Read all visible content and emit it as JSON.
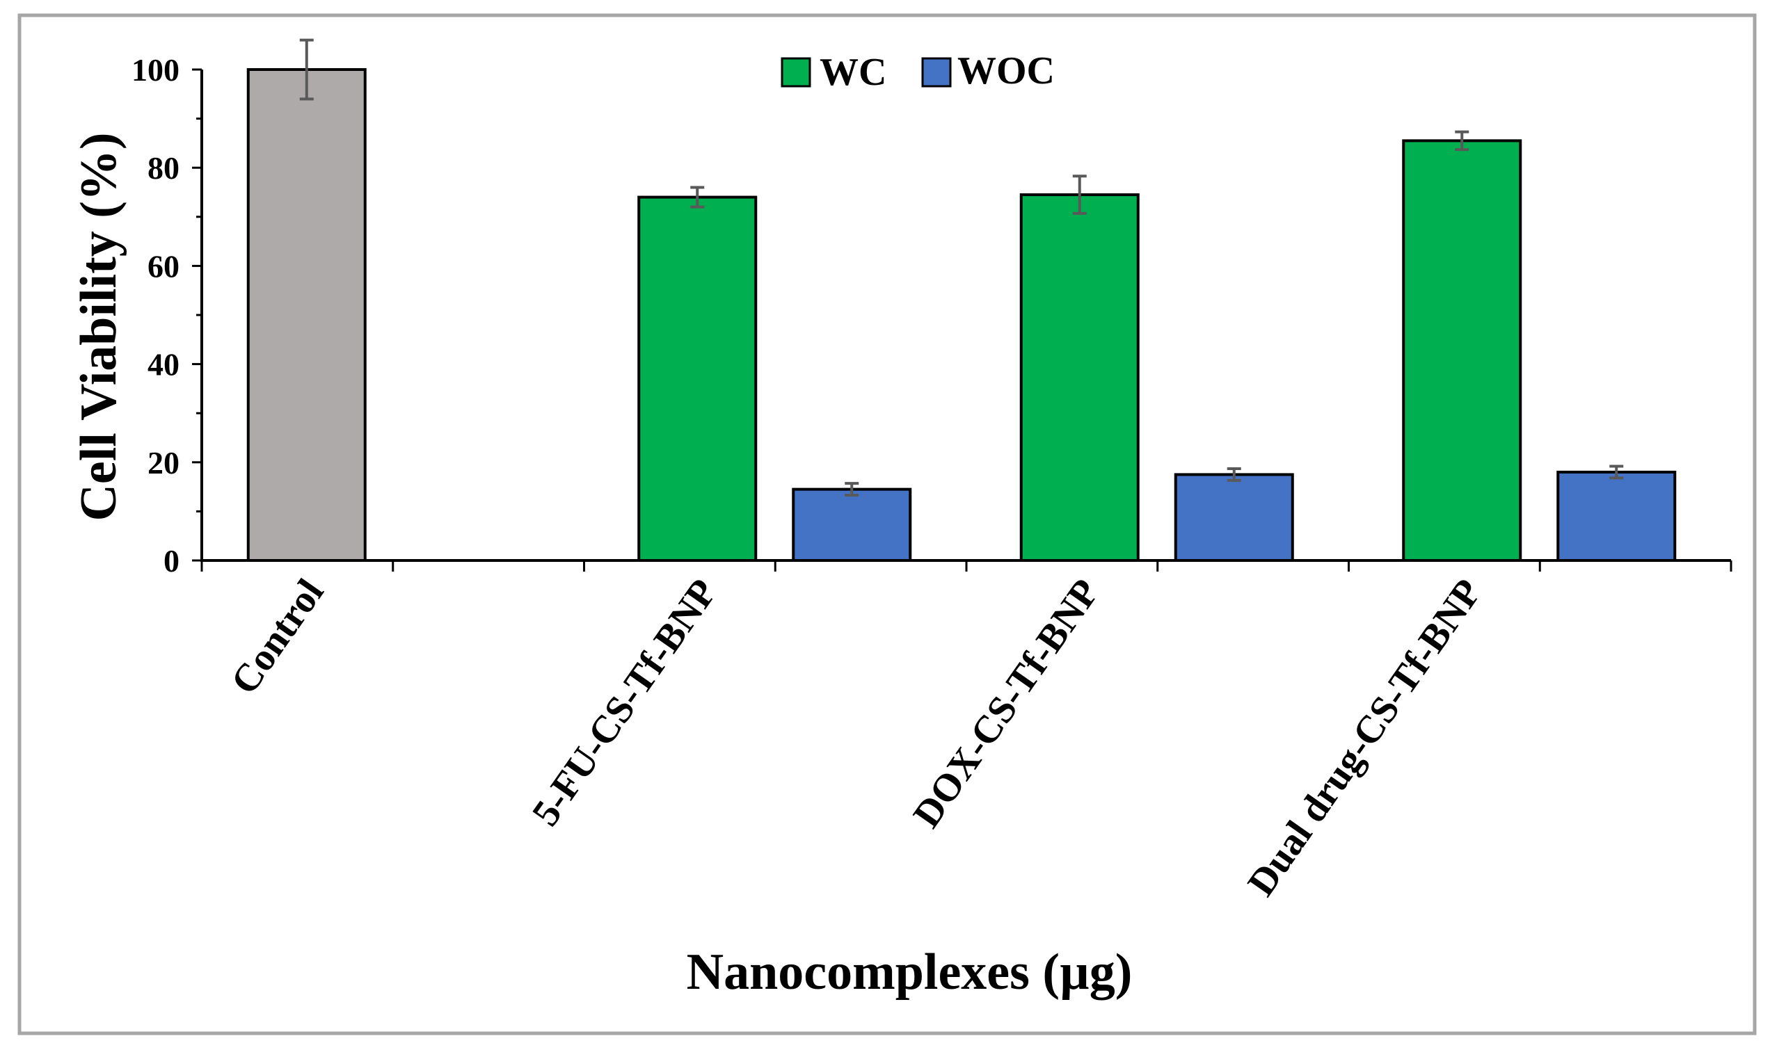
{
  "chart_data": {
    "type": "bar",
    "title": "",
    "xlabel": "Nanocomplexes (µg)",
    "ylabel": "Cell Viability (%)",
    "ylim": [
      0,
      100
    ],
    "yticks": [
      0,
      20,
      40,
      60,
      80,
      100
    ],
    "grid": false,
    "legend_position": "top-center",
    "categories": [
      "Control",
      "5-FU-CS-Tf-BNP",
      "DOX-CS-Tf-BNP",
      "Dual drug-CS-Tf-BNP"
    ],
    "control": {
      "name": "Control",
      "value": 100,
      "error": 6,
      "color": "#aeaaaa"
    },
    "series": [
      {
        "name": "WC",
        "color": "#00b050",
        "values": [
          null,
          74,
          74.5,
          85.5
        ],
        "errors": [
          null,
          2,
          3.8,
          1.8
        ]
      },
      {
        "name": "WOC",
        "color": "#4472c4",
        "values": [
          null,
          14.5,
          17.5,
          18
        ],
        "errors": [
          null,
          1.2,
          1.2,
          1.2
        ]
      }
    ]
  }
}
